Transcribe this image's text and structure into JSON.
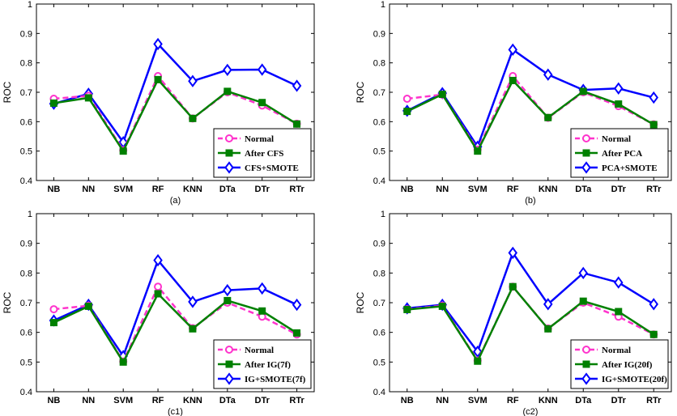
{
  "chart_data": [
    {
      "type": "line",
      "caption": "(a)",
      "ylabel": "ROC",
      "ylim": [
        0.4,
        1
      ],
      "yticks": [
        "0.4",
        "0.5",
        "0.6",
        "0.7",
        "0.8",
        "0.9",
        "1"
      ],
      "categories": [
        "NB",
        "NN",
        "SVM",
        "RF",
        "KNN",
        "DTa",
        "DTr",
        "RTr"
      ],
      "legend_position": "bottom-right",
      "series": [
        {
          "name": "Normal",
          "color": "#ff33cc",
          "marker": "circle",
          "dashed": true,
          "values": [
            0.678,
            0.688,
            0.503,
            0.755,
            0.611,
            0.7,
            0.655,
            0.593
          ]
        },
        {
          "name": "After CFS",
          "color": "#008000",
          "marker": "square",
          "dashed": false,
          "values": [
            0.663,
            0.681,
            0.5,
            0.743,
            0.611,
            0.703,
            0.665,
            0.592
          ]
        },
        {
          "name": "CFS+SMOTE",
          "color": "#0000ff",
          "marker": "diamond",
          "dashed": false,
          "values": [
            0.661,
            0.695,
            0.53,
            0.864,
            0.738,
            0.776,
            0.777,
            0.722
          ]
        }
      ]
    },
    {
      "type": "line",
      "caption": "(b)",
      "ylabel": "ROC",
      "ylim": [
        0.4,
        1
      ],
      "yticks": [
        "0.4",
        "0.5",
        "0.6",
        "0.7",
        "0.8",
        "0.9",
        "1"
      ],
      "categories": [
        "NB",
        "NN",
        "SVM",
        "RF",
        "KNN",
        "DTa",
        "DTr",
        "RTr"
      ],
      "legend_position": "bottom-right",
      "series": [
        {
          "name": "Normal",
          "color": "#ff33cc",
          "marker": "circle",
          "dashed": true,
          "values": [
            0.678,
            0.692,
            0.505,
            0.755,
            0.613,
            0.7,
            0.653,
            0.591
          ]
        },
        {
          "name": "After PCA",
          "color": "#008000",
          "marker": "square",
          "dashed": false,
          "values": [
            0.635,
            0.693,
            0.5,
            0.74,
            0.614,
            0.703,
            0.66,
            0.59
          ]
        },
        {
          "name": "PCA+SMOTE",
          "color": "#0000ff",
          "marker": "diamond",
          "dashed": false,
          "values": [
            0.637,
            0.697,
            0.515,
            0.845,
            0.76,
            0.708,
            0.713,
            0.682
          ]
        }
      ]
    },
    {
      "type": "line",
      "caption": "(c1)",
      "ylabel": "ROC",
      "ylim": [
        0.4,
        1
      ],
      "yticks": [
        "0.4",
        "0.5",
        "0.6",
        "0.7",
        "0.8",
        "0.9",
        "1"
      ],
      "categories": [
        "NB",
        "NN",
        "SVM",
        "RF",
        "KNN",
        "DTa",
        "DTr",
        "RTr"
      ],
      "legend_position": "bottom-right",
      "series": [
        {
          "name": "Normal",
          "color": "#ff33cc",
          "marker": "circle",
          "dashed": true,
          "values": [
            0.678,
            0.69,
            0.502,
            0.754,
            0.614,
            0.7,
            0.653,
            0.593
          ]
        },
        {
          "name": "After IG(7f)",
          "color": "#008000",
          "marker": "square",
          "dashed": false,
          "values": [
            0.633,
            0.688,
            0.5,
            0.73,
            0.612,
            0.707,
            0.672,
            0.598
          ]
        },
        {
          "name": "IG+SMOTE(7f)",
          "color": "#0000ff",
          "marker": "diamond",
          "dashed": false,
          "values": [
            0.64,
            0.693,
            0.52,
            0.843,
            0.703,
            0.742,
            0.748,
            0.693
          ]
        }
      ]
    },
    {
      "type": "line",
      "caption": "(c2)",
      "ylabel": "ROC",
      "ylim": [
        0.4,
        1
      ],
      "yticks": [
        "0.4",
        "0.5",
        "0.6",
        "0.7",
        "0.8",
        "0.9",
        "1"
      ],
      "categories": [
        "NB",
        "NN",
        "SVM",
        "RF",
        "KNN",
        "DTa",
        "DTr",
        "RTr"
      ],
      "legend_position": "bottom-right",
      "series": [
        {
          "name": "Normal",
          "color": "#ff33cc",
          "marker": "circle",
          "dashed": true,
          "values": [
            0.678,
            0.69,
            0.505,
            0.754,
            0.613,
            0.7,
            0.653,
            0.593
          ]
        },
        {
          "name": "After IG(20f)",
          "color": "#008000",
          "marker": "square",
          "dashed": false,
          "values": [
            0.677,
            0.688,
            0.503,
            0.754,
            0.612,
            0.705,
            0.67,
            0.593
          ]
        },
        {
          "name": "IG+SMOTE(20f)",
          "color": "#0000ff",
          "marker": "diamond",
          "dashed": false,
          "values": [
            0.681,
            0.693,
            0.535,
            0.868,
            0.695,
            0.8,
            0.768,
            0.695
          ]
        }
      ]
    }
  ]
}
